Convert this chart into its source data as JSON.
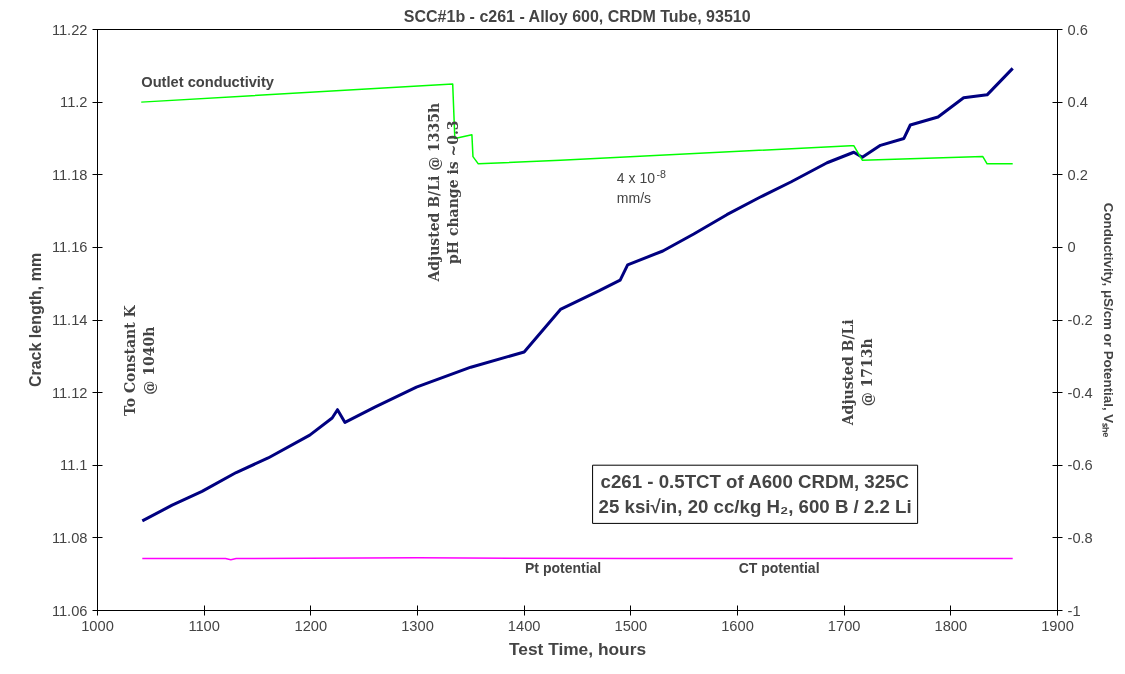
{
  "chart_data": {
    "type": "line",
    "title": "SCC#1b - c261 - Alloy 600, CRDM Tube, 93510",
    "xlabel": "Test Time, hours",
    "ylabel": "Crack length, mm",
    "y2label": "Conductivity, μS/cm or Potential, Vₛₕₑ",
    "xlim": [
      1000,
      1900
    ],
    "xticks": [
      1000,
      1100,
      1200,
      1300,
      1400,
      1500,
      1600,
      1700,
      1800,
      1900
    ],
    "ylim": [
      11.06,
      11.22
    ],
    "yticks": [
      11.06,
      11.08,
      11.1,
      11.12,
      11.14,
      11.16,
      11.18,
      11.2,
      11.22
    ],
    "y2lim": [
      -1,
      0.6
    ],
    "y2ticks": [
      -1,
      -0.8,
      -0.6,
      -0.4,
      -0.2,
      0,
      0.2,
      0.4,
      0.6
    ],
    "grid": false,
    "line_style": "solid",
    "marker": "none",
    "series": [
      {
        "color": "#000080",
        "x": [
          1042,
          1070,
          1098,
          1130,
          1160,
          1199,
          1220,
          1225,
          1232,
          1260,
          1299,
          1350,
          1400,
          1434,
          1470,
          1490,
          1497,
          1530,
          1559,
          1590,
          1621,
          1650,
          1684,
          1709,
          1717,
          1734,
          1756,
          1762,
          1788,
          1812,
          1834,
          1858
        ],
        "values": [
          11.0847,
          11.089,
          11.0928,
          11.098,
          11.102,
          11.1083,
          11.113,
          11.1153,
          11.1118,
          11.116,
          11.1215,
          11.127,
          11.1312,
          11.1429,
          11.148,
          11.151,
          11.1552,
          11.159,
          11.1637,
          11.169,
          11.1738,
          11.178,
          11.1833,
          11.1862,
          11.1848,
          11.1881,
          11.19,
          11.1937,
          11.1959,
          11.2012,
          11.202,
          11.2093
        ]
      },
      {
        "name": "Outlet conductivity",
        "color": "#00ff00",
        "axis": "y2",
        "x": [
          1041,
          1333,
          1335,
          1351,
          1352,
          1357,
          1434,
          1706,
          1709,
          1717,
          1830,
          1834,
          1858
        ],
        "values": [
          0.4,
          0.45,
          0.3,
          0.31,
          0.25,
          0.23,
          0.24,
          0.28,
          0.28,
          0.24,
          0.25,
          0.23,
          0.23
        ]
      },
      {
        "color": "#ff00ff",
        "axis": "y2",
        "x": [
          1042,
          1120,
          1125,
          1130,
          1300,
          1500,
          1700,
          1858
        ],
        "values": [
          -0.857,
          -0.857,
          -0.86,
          -0.857,
          -0.855,
          -0.857,
          -0.857,
          -0.857
        ]
      }
    ],
    "annotations": [
      "To Constant K\n@ 1040h",
      "Adjusted B/Li @ 1335h\npH change is ~0.3",
      "Adjusted B/Li\n@ 1713h",
      "4 x 10$^{-8}$\nmm/s",
      "c261 - 0.5TCT of A600 CRDM, 325C\n25 ksi√in, 20 cc/kg H₂, 600 B / 2.2 Li",
      "Pt potential",
      "CT potential"
    ]
  }
}
